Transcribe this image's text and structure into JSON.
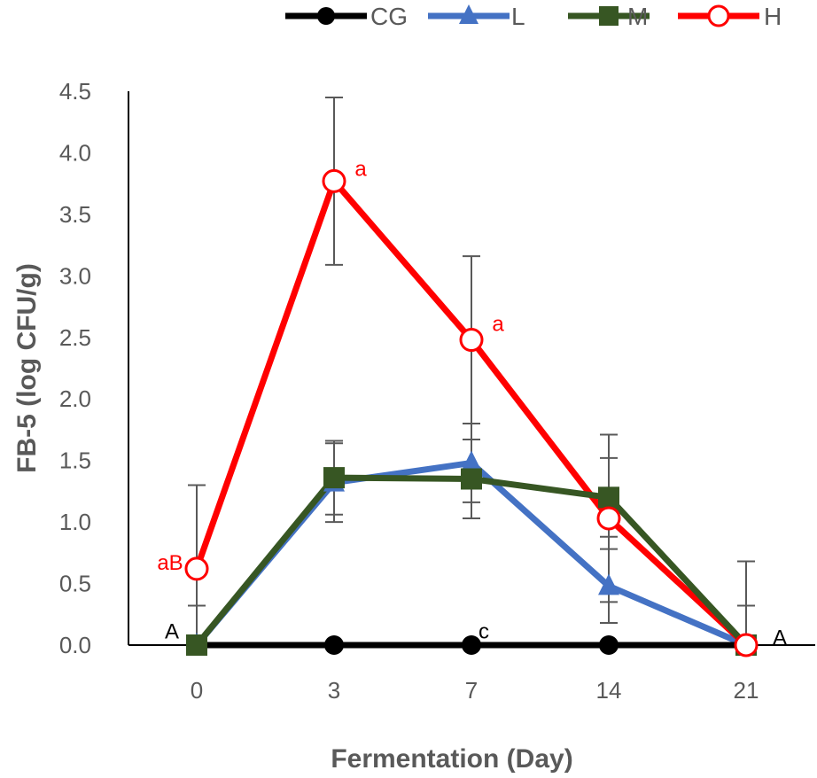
{
  "chart_data": {
    "type": "line",
    "categories": [
      "0",
      "3",
      "7",
      "14",
      "21"
    ],
    "xlabel": "Fermentation (Day)",
    "ylabel": "FB-5 (log CFU/g)",
    "ylim": [
      0,
      4.5
    ],
    "yticks": [
      "0.0",
      "0.5",
      "1.0",
      "1.5",
      "2.0",
      "2.5",
      "3.0",
      "3.5",
      "4.0",
      "4.5"
    ],
    "grid": false,
    "legend_position": "top",
    "series": [
      {
        "name": "CG",
        "color": "#000000",
        "marker": "filled-circle",
        "values": [
          0,
          0,
          0,
          0,
          0
        ],
        "errors": [
          0,
          0,
          0,
          0,
          0
        ]
      },
      {
        "name": "L",
        "color": "#4472C4",
        "marker": "triangle",
        "values": [
          0,
          1.32,
          1.48,
          0.48,
          0
        ],
        "errors": [
          0.32,
          0.32,
          0.32,
          0.3,
          0.32
        ]
      },
      {
        "name": "M",
        "color": "#375623",
        "marker": "square",
        "values": [
          0,
          1.36,
          1.35,
          1.2,
          0
        ],
        "errors": [
          0.32,
          0.3,
          0.32,
          0.32,
          0.32
        ]
      },
      {
        "name": "H",
        "color": "#FF0000",
        "marker": "open-circle",
        "values": [
          0.62,
          3.77,
          2.48,
          1.03,
          0
        ],
        "errors": [
          0.68,
          0.68,
          0.68,
          0.68,
          0.68
        ]
      }
    ],
    "annotations": [
      {
        "text": "aB",
        "x": "0",
        "y": 0.67,
        "color": "#FF0000"
      },
      {
        "text": "a",
        "x": "3",
        "y": 3.87,
        "color": "#FF0000"
      },
      {
        "text": "a",
        "x": "7",
        "y": 2.61,
        "color": "#FF0000"
      },
      {
        "text": "A",
        "x": "0",
        "y": 0.11,
        "color": "#000000"
      },
      {
        "text": "c",
        "x": "7",
        "y": 0.11,
        "color": "#000000"
      },
      {
        "text": "A",
        "x": "21",
        "y": 0.06,
        "color": "#000000"
      }
    ]
  }
}
